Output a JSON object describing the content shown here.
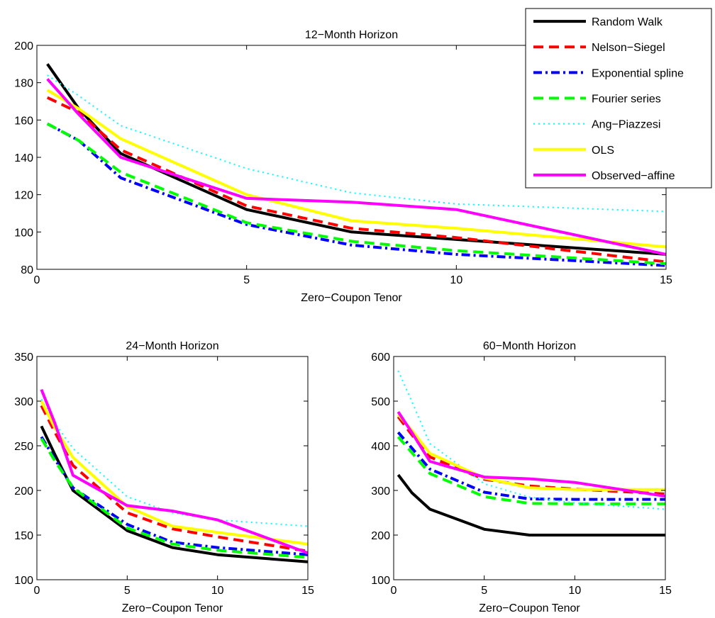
{
  "series_styles": [
    {
      "name": "Random Walk",
      "color": "#000000",
      "dash": "solid"
    },
    {
      "name": "Nelson−Siegel",
      "color": "#ff0000",
      "dash": "dashed"
    },
    {
      "name": "Exponential spline",
      "color": "#0000ff",
      "dash": "dashdot"
    },
    {
      "name": "Fourier series",
      "color": "#00ff00",
      "dash": "dashed"
    },
    {
      "name": "Ang−Piazzesi",
      "color": "#00ffff",
      "dash": "dotted"
    },
    {
      "name": "OLS",
      "color": "#ffff00",
      "dash": "solid"
    },
    {
      "name": "Observed−affine",
      "color": "#ff00ff",
      "dash": "solid"
    }
  ],
  "chart_data": [
    {
      "type": "line",
      "title": "12−Month Horizon",
      "xlabel": "Zero−Coupon Tenor",
      "ylabel": "",
      "xlim": [
        0,
        15
      ],
      "ylim": [
        80,
        200
      ],
      "xticks": [
        0,
        5,
        10,
        15
      ],
      "yticks": [
        80,
        100,
        120,
        140,
        160,
        180,
        200
      ],
      "grid": false,
      "legend": "top-right",
      "x": [
        0.25,
        1,
        2,
        5,
        7.5,
        10,
        15
      ],
      "series": [
        {
          "name": "Random Walk",
          "values": [
            190,
            166,
            142,
            112,
            100,
            96,
            88
          ]
        },
        {
          "name": "Nelson−Siegel",
          "values": [
            172,
            164,
            144,
            114,
            102,
            97,
            84
          ]
        },
        {
          "name": "Exponential spline",
          "values": [
            158,
            149,
            129,
            104,
            93,
            88,
            82
          ]
        },
        {
          "name": "Fourier series",
          "values": [
            158,
            149,
            132,
            105,
            95,
            90,
            83
          ]
        },
        {
          "name": "Ang−Piazzesi",
          "values": [
            184,
            173,
            157,
            134,
            121,
            115,
            111
          ]
        },
        {
          "name": "OLS",
          "values": [
            176,
            166,
            150,
            120,
            106,
            102,
            92
          ]
        },
        {
          "name": "Observed−affine",
          "values": [
            182,
            163,
            140,
            118,
            116,
            112,
            88
          ]
        }
      ]
    },
    {
      "type": "line",
      "title": "24−Month Horizon",
      "xlabel": "Zero−Coupon Tenor",
      "ylabel": "",
      "xlim": [
        0,
        15
      ],
      "ylim": [
        100,
        350
      ],
      "xticks": [
        0,
        5,
        10,
        15
      ],
      "yticks": [
        100,
        150,
        200,
        250,
        300,
        350
      ],
      "grid": false,
      "x": [
        0.25,
        1,
        2,
        5,
        7.5,
        10,
        15
      ],
      "series": [
        {
          "name": "Random Walk",
          "values": [
            272,
            240,
            200,
            155,
            136,
            128,
            120
          ]
        },
        {
          "name": "Nelson−Siegel",
          "values": [
            295,
            265,
            228,
            175,
            157,
            148,
            132
          ]
        },
        {
          "name": "Exponential spline",
          "values": [
            260,
            235,
            203,
            162,
            142,
            136,
            128
          ]
        },
        {
          "name": "Fourier series",
          "values": [
            258,
            233,
            203,
            158,
            140,
            133,
            125
          ]
        },
        {
          "name": "Ang−Piazzesi",
          "values": [
            302,
            275,
            247,
            193,
            175,
            167,
            160
          ]
        },
        {
          "name": "OLS",
          "values": [
            300,
            270,
            237,
            182,
            160,
            153,
            140
          ]
        },
        {
          "name": "Observed−affine",
          "values": [
            313,
            275,
            217,
            183,
            177,
            167,
            130
          ]
        }
      ]
    },
    {
      "type": "line",
      "title": "60−Month Horizon",
      "xlabel": "Zero−Coupon Tenor",
      "ylabel": "",
      "xlim": [
        0,
        15
      ],
      "ylim": [
        100,
        600
      ],
      "xticks": [
        0,
        5,
        10,
        15
      ],
      "yticks": [
        100,
        200,
        300,
        400,
        500,
        600
      ],
      "grid": false,
      "x": [
        0.25,
        1,
        2,
        5,
        7.5,
        10,
        15
      ],
      "series": [
        {
          "name": "Random Walk",
          "values": [
            335,
            295,
            258,
            213,
            200,
            200,
            200
          ]
        },
        {
          "name": "Nelson−Siegel",
          "values": [
            465,
            425,
            375,
            325,
            310,
            303,
            292
          ]
        },
        {
          "name": "Exponential spline",
          "values": [
            430,
            395,
            348,
            296,
            281,
            280,
            280
          ]
        },
        {
          "name": "Fourier series",
          "values": [
            420,
            385,
            338,
            286,
            271,
            270,
            270
          ]
        },
        {
          "name": "Ang−Piazzesi",
          "values": [
            568,
            500,
            405,
            315,
            285,
            272,
            258
          ]
        },
        {
          "name": "OLS",
          "values": [
            470,
            435,
            383,
            328,
            306,
            302,
            302
          ]
        },
        {
          "name": "Observed−affine",
          "values": [
            476,
            430,
            365,
            330,
            326,
            318,
            287
          ]
        }
      ]
    }
  ]
}
